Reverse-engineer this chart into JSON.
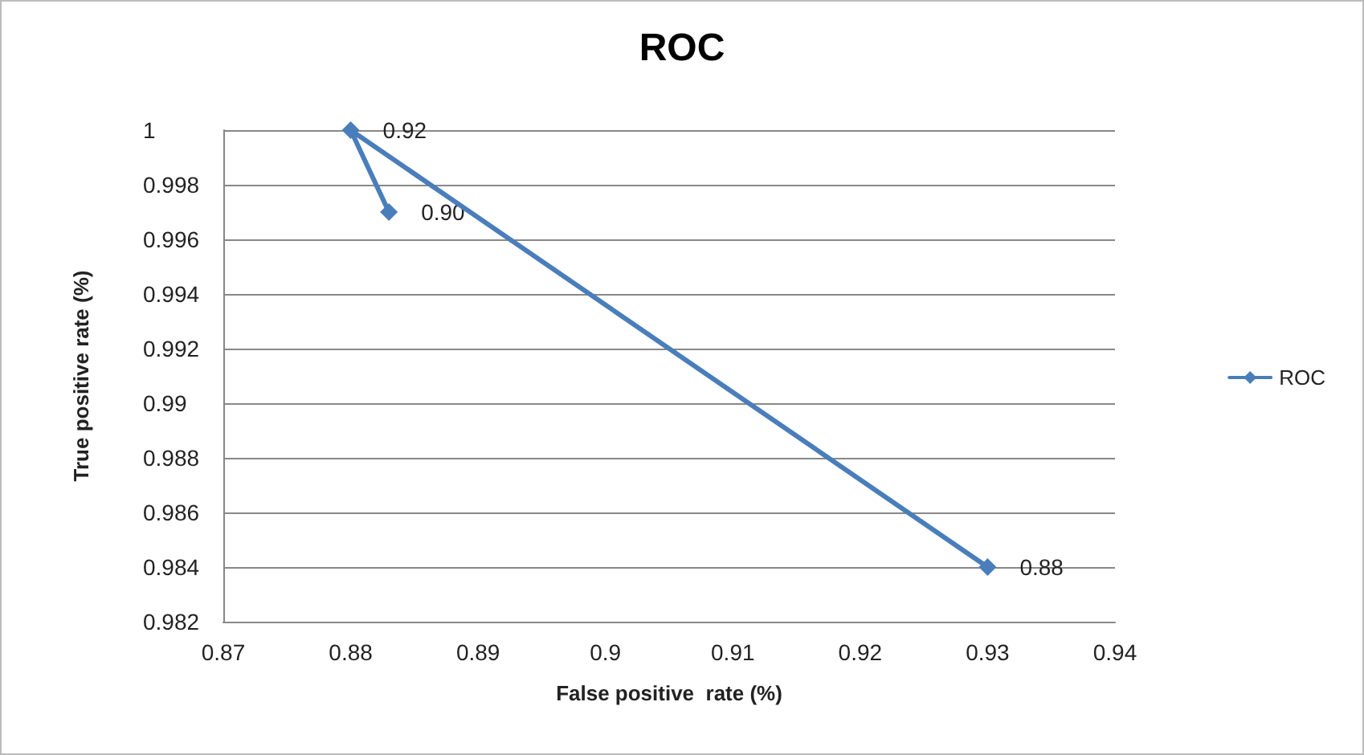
{
  "chart_data": {
    "type": "line",
    "title": "ROC",
    "xlabel": "False positive  rate (%)",
    "ylabel": "True positive rate (%)",
    "series": [
      {
        "name": "ROC",
        "color": "#4a7ebb",
        "x": [
          0.93,
          0.88,
          0.883
        ],
        "values": [
          0.984,
          1,
          0.997
        ]
      }
    ],
    "annotations": [
      {
        "text": "0.88",
        "x": 0.93,
        "y": 0.984
      },
      {
        "text": "0.92",
        "x": 0.88,
        "y": 1
      },
      {
        "text": "0.90",
        "x": 0.883,
        "y": 0.997
      }
    ],
    "xlim": [
      0.87,
      0.94
    ],
    "xticks": [
      0.87,
      0.88,
      0.89,
      0.9,
      0.91,
      0.92,
      0.93,
      0.94
    ],
    "ylim": [
      0.982,
      1
    ],
    "yticks": [
      0.982,
      0.984,
      0.986,
      0.988,
      0.99,
      0.992,
      0.994,
      0.996,
      0.998,
      1
    ],
    "grid": "y",
    "legend": "right",
    "marker": "diamond",
    "line_style": "solid"
  }
}
